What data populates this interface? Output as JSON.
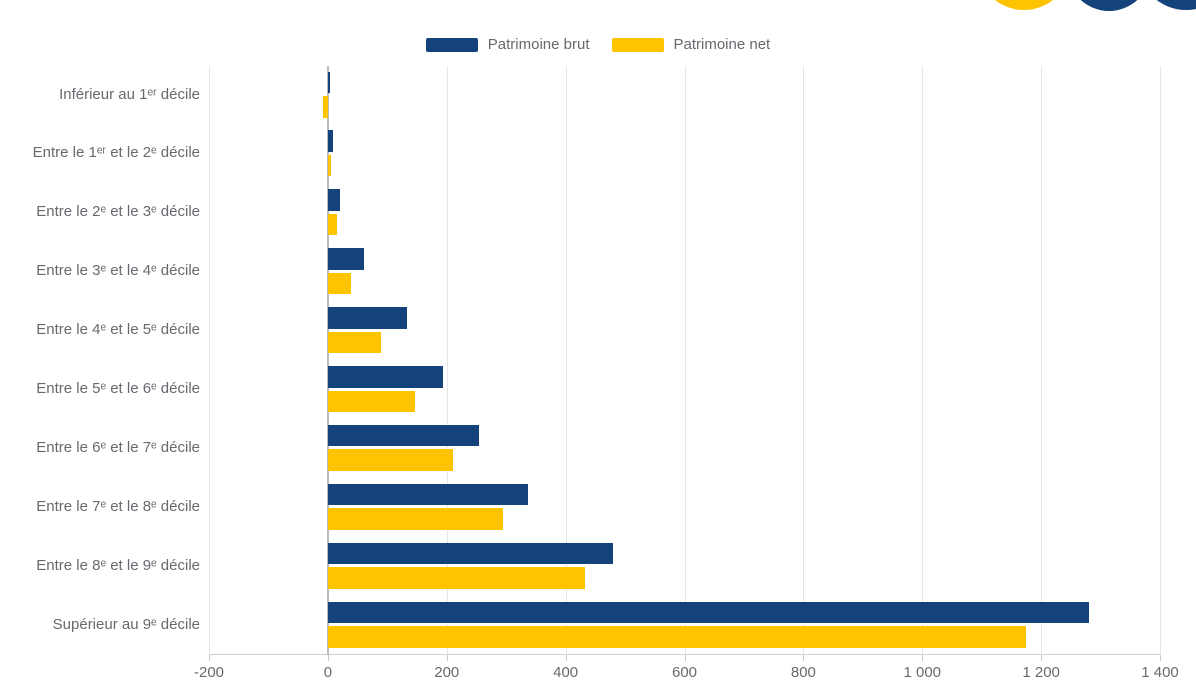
{
  "decor": {
    "circle_colors": [
      "#ffc400",
      "#14437c",
      "#14437c"
    ]
  },
  "chart_data": {
    "type": "bar",
    "orientation": "horizontal",
    "title": "",
    "xlabel": "",
    "ylabel": "",
    "categories": [
      "Inférieur au 1ᵉʳ décile",
      "Entre le 1ᵉʳ et le 2ᵉ décile",
      "Entre le 2ᵉ et le 3ᵉ décile",
      "Entre le 3ᵉ et le 4ᵉ décile",
      "Entre le 4ᵉ et le 5ᵉ décile",
      "Entre le 5ᵉ et le 6ᵉ décile",
      "Entre le 6ᵉ et le 7ᵉ décile",
      "Entre le 7ᵉ et le 8ᵉ décile",
      "Entre le 8ᵉ et le 9ᵉ décile",
      "Supérieur au 9ᵉ décile"
    ],
    "series": [
      {
        "name": "Patrimoine brut",
        "color": "#14437c",
        "values": [
          3,
          9,
          20,
          60,
          133,
          193,
          254,
          336,
          480,
          1280
        ]
      },
      {
        "name": "Patrimoine net",
        "color": "#ffc400",
        "values": [
          -8,
          6,
          15,
          39,
          89,
          147,
          210,
          294,
          433,
          1175
        ]
      }
    ],
    "xlim": [
      -200,
      1400
    ],
    "x_ticks": [
      -200,
      0,
      200,
      400,
      600,
      800,
      1000,
      1200,
      1400
    ],
    "x_tick_labels": [
      "-200",
      "0",
      "200",
      "400",
      "600",
      "800",
      "1 000",
      "1 200",
      "1 400"
    ],
    "grid": true,
    "legend_position": "top-center"
  }
}
